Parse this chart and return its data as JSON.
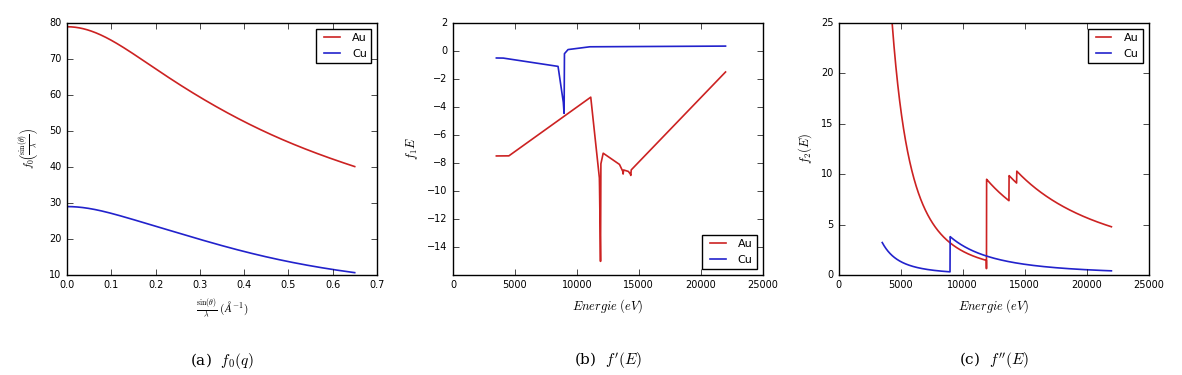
{
  "fig_width": 11.82,
  "fig_height": 3.75,
  "dpi": 100,
  "color_Au": "#cc2222",
  "color_Cu": "#2222cc",
  "background": "#ffffff",
  "panel_a": {
    "xlim": [
      0.0,
      0.7
    ],
    "ylim": [
      10,
      80
    ],
    "yticks": [
      10,
      20,
      30,
      40,
      50,
      60,
      70,
      80
    ],
    "xticks": [
      0.0,
      0.1,
      0.2,
      0.3,
      0.4,
      0.5,
      0.6,
      0.7
    ]
  },
  "panel_b": {
    "xlim": [
      0,
      25000
    ],
    "ylim": [
      -16,
      2
    ],
    "yticks": [
      -14,
      -12,
      -10,
      -8,
      -6,
      -4,
      -2,
      0,
      2
    ],
    "xticks": [
      0,
      5000,
      10000,
      15000,
      20000,
      25000
    ]
  },
  "panel_c": {
    "xlim": [
      0,
      25000
    ],
    "ylim": [
      0,
      25
    ],
    "yticks": [
      0,
      5,
      10,
      15,
      20,
      25
    ],
    "xticks": [
      0,
      5000,
      10000,
      15000,
      20000,
      25000
    ]
  }
}
